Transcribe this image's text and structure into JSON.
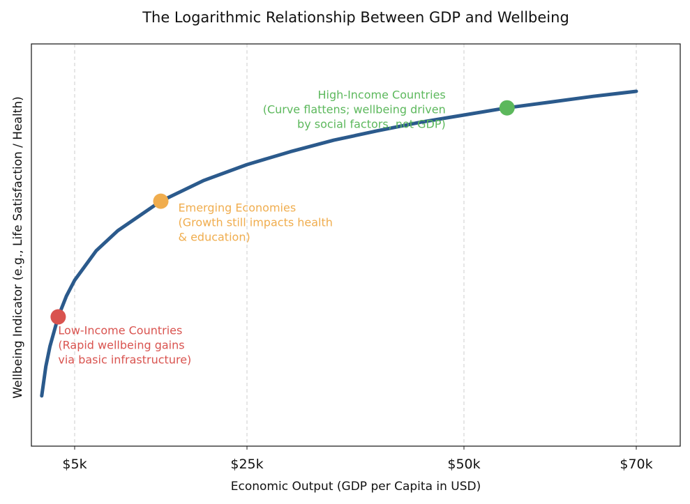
{
  "chart_data": {
    "type": "line",
    "title": "The Logarithmic Relationship Between GDP and Wellbeing",
    "xlabel": "Economic Output (GDP per Capita in USD)",
    "ylabel": "Wellbeing Indicator (e.g., Life Satisfaction / Health)",
    "x_ticks": [
      {
        "value": 5000,
        "label": "$5k"
      },
      {
        "value": 25000,
        "label": "$25k"
      },
      {
        "value": 50000,
        "label": "$50k"
      },
      {
        "value": 70000,
        "label": "$70k"
      }
    ],
    "xlim": [
      0,
      75000
    ],
    "y_ticks_shown": false,
    "grid": {
      "x": true,
      "y": false,
      "style": "dashed"
    },
    "series": [
      {
        "color": "#2b5a8c",
        "function": "log",
        "x": [
          1000,
          1500,
          2000,
          3000,
          4000,
          5000,
          7500,
          10000,
          15000,
          20000,
          25000,
          30000,
          35000,
          40000,
          45000,
          50000,
          55000,
          60000,
          65000,
          70000
        ],
        "y": [
          0.7,
          1.11,
          1.39,
          1.8,
          2.09,
          2.31,
          2.72,
          3.0,
          3.41,
          3.7,
          3.92,
          4.1,
          4.26,
          4.39,
          4.51,
          4.61,
          4.71,
          4.79,
          4.87,
          4.94
        ]
      }
    ],
    "highlights": [
      {
        "x": 3000,
        "y": 1.8,
        "color": "#d9534f",
        "label_lines": [
          "Low-Income Countries",
          "(Rapid wellbeing gains",
          "via basic infrastructure)"
        ],
        "label_position": "below-right"
      },
      {
        "x": 15000,
        "y": 3.41,
        "color": "#f0ad4e",
        "label_lines": [
          "Emerging Economies",
          "(Growth still impacts health",
          "& education)"
        ],
        "label_position": "right"
      },
      {
        "x": 55000,
        "y": 4.71,
        "color": "#5cb85c",
        "label_lines": [
          "High-Income Countries",
          "(Curve flattens; wellbeing driven",
          "by social factors, not GDP)"
        ],
        "label_position": "left"
      }
    ]
  }
}
